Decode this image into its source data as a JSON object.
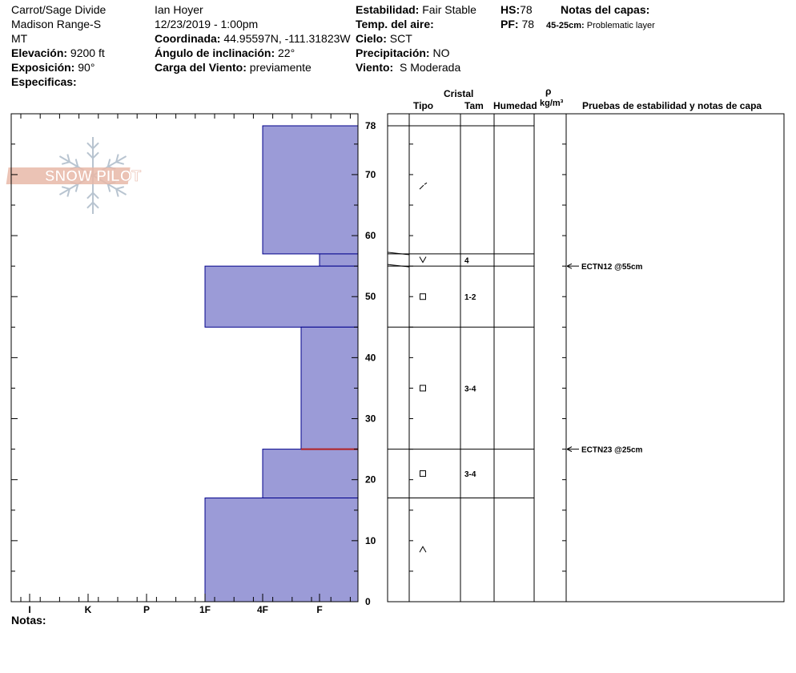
{
  "header": {
    "location": "Carrot/Sage Divide",
    "range": "Madison Range-S",
    "state": "MT",
    "elevation_label": "Elevación:",
    "elevation_value": "9200 ft",
    "aspect_label": "Exposición:",
    "aspect_value": "90°",
    "specifics_label": "Especificas:",
    "observer": "Ian Hoyer",
    "datetime": "12/23/2019 - 1:00pm",
    "coord_label": "Coordinada:",
    "coord_value": "44.95597N, -111.31823W",
    "slope_label": "Ángulo de inclinación:",
    "slope_value": "22°",
    "wind_load_label": "Carga del Viento:",
    "wind_load_value": "previamente",
    "stability_label": "Estabilidad:",
    "stability_value": "Fair Stable",
    "air_temp_label": "Temp. del aire:",
    "sky_label": "Cielo:",
    "sky_value": "SCT",
    "precip_label": "Precipitación:",
    "precip_value": "NO",
    "wind_label": "Viento:",
    "wind_value": "S Moderada",
    "hs_label": "HS:",
    "hs_value": "78",
    "pf_label": "PF:",
    "pf_value": "78",
    "layer_notes_label": "Notas del capas:",
    "layer_note_range": "45-25cm:",
    "layer_note_text": "Problematic layer",
    "notes_label": "Notas:"
  },
  "logo": {
    "text": "SNOW PILOT"
  },
  "columns": {
    "crystal": "Cristal",
    "type": "Tipo",
    "size": "Tam",
    "moisture": "Humedad",
    "rho": "ρ",
    "density_unit": "kg/m³",
    "tests": "Pruebas de estabilidad y notas de capa"
  },
  "chart_data": {
    "type": "bar",
    "title": "",
    "hardness_scale": [
      "I",
      "K",
      "P",
      "1F",
      "4F",
      "F"
    ],
    "ylim": [
      0,
      78
    ],
    "yticks": [
      0,
      10,
      20,
      30,
      40,
      50,
      60,
      70,
      78
    ],
    "hardness_layers": [
      {
        "bottom": 57,
        "top": 78,
        "hardness": "4F"
      },
      {
        "bottom": 55,
        "top": 57,
        "hardness": "F"
      },
      {
        "bottom": 45,
        "top": 55,
        "hardness": "1F"
      },
      {
        "bottom": 25,
        "top": 45,
        "hardness": "4F-F"
      },
      {
        "bottom": 17,
        "top": 25,
        "hardness": "4F"
      },
      {
        "bottom": 0,
        "top": 17,
        "hardness": "1F"
      }
    ],
    "problem_layer": 25,
    "layer_boundaries": [
      78,
      57,
      55,
      45,
      25,
      17
    ],
    "crystals": [
      {
        "height": 68,
        "grain": "decomposing",
        "size": ""
      },
      {
        "height": 56,
        "grain": "surface-hoar",
        "size": "4"
      },
      {
        "height": 50,
        "grain": "faceted",
        "size": "1-2"
      },
      {
        "height": 35,
        "grain": "faceted",
        "size": "3-4"
      },
      {
        "height": 21,
        "grain": "faceted",
        "size": "3-4"
      },
      {
        "height": 8.5,
        "grain": "depth-hoar",
        "size": ""
      }
    ],
    "tests": [
      {
        "height": 55,
        "label": "ECTN12 @55cm"
      },
      {
        "height": 25,
        "label": "ECTN23 @25cm"
      }
    ]
  },
  "colors": {
    "bar_fill": "#9B9BD7",
    "bar_stroke": "#00008B",
    "problem_line": "#B22222",
    "logo": "#E8B8A8",
    "snowflake": "#B8C4D0"
  }
}
